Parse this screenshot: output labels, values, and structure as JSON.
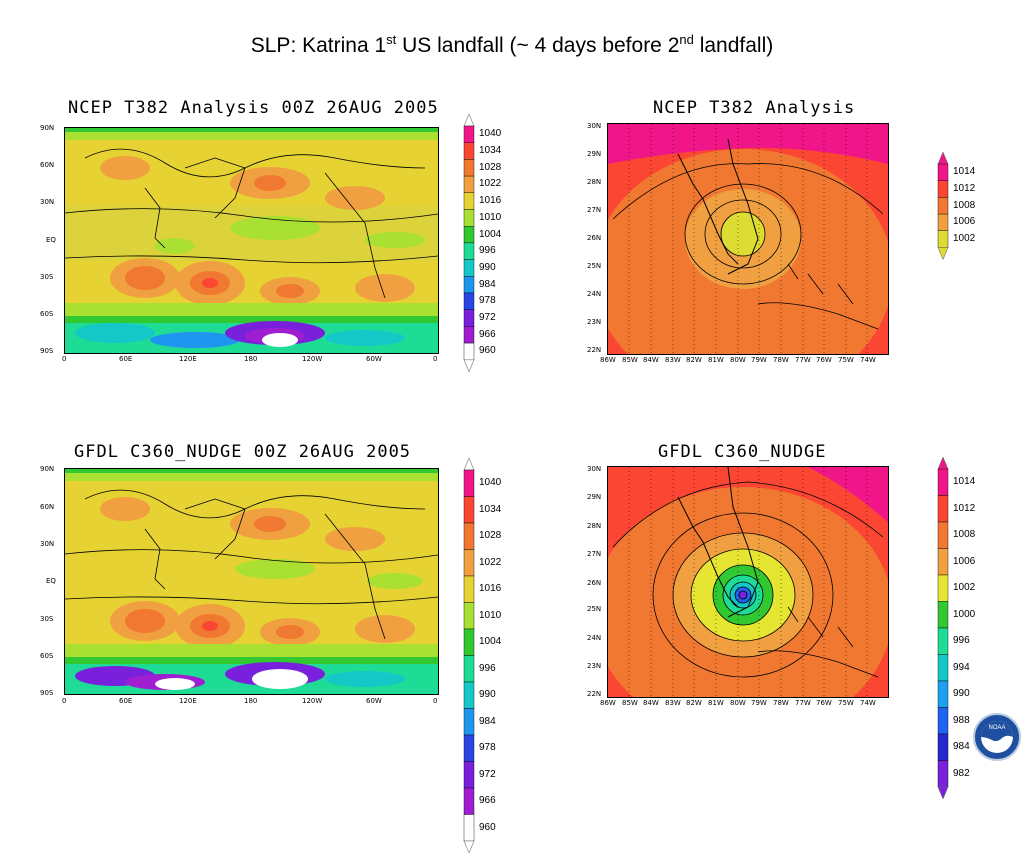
{
  "slide": {
    "title_pre": "SLP:  Katrina 1",
    "title_sup1": "st",
    "title_mid": " US landfall (~ 4 days before 2",
    "title_sup2": "nd",
    "title_post": " landfall)"
  },
  "chart_data": [
    {
      "type": "heatmap",
      "title": "NCEP T382 Analysis 00Z 26AUG 2005",
      "x_ticks": [
        "0",
        "60E",
        "120E",
        "180",
        "120W",
        "60W",
        "0"
      ],
      "y_ticks": [
        "90N",
        "60N",
        "30N",
        "EQ",
        "30S",
        "60S",
        "90S"
      ],
      "colorbar": {
        "levels": [
          "1040",
          "1034",
          "1028",
          "1022",
          "1016",
          "1010",
          "1004",
          "996",
          "990",
          "984",
          "978",
          "972",
          "966",
          "960"
        ],
        "colors": [
          "#f0168a",
          "#fa4632",
          "#f07830",
          "#f0a040",
          "#e6d232",
          "#aae032",
          "#32c832",
          "#1edc96",
          "#14c8c8",
          "#1e96f0",
          "#2846e6",
          "#7820dc",
          "#a01ed2",
          "#ffffff"
        ]
      }
    },
    {
      "type": "heatmap",
      "title": "NCEP T382 Analysis",
      "x_ticks": [
        "86W",
        "85W",
        "84W",
        "83W",
        "82W",
        "81W",
        "80W",
        "79W",
        "78W",
        "77W",
        "76W",
        "75W",
        "74W"
      ],
      "y_ticks": [
        "30N",
        "29N",
        "28N",
        "27N",
        "26N",
        "25N",
        "24N",
        "23N",
        "22N"
      ],
      "colorbar": {
        "levels": [
          "1014",
          "1012",
          "1008",
          "1006",
          "1002"
        ],
        "colors": [
          "#f0168a",
          "#fa4632",
          "#f07830",
          "#f0a040",
          "#dcdc32"
        ]
      }
    },
    {
      "type": "heatmap",
      "title": "GFDL C360_NUDGE 00Z 26AUG 2005",
      "x_ticks": [
        "0",
        "60E",
        "120E",
        "180",
        "120W",
        "60W",
        "0"
      ],
      "y_ticks": [
        "90N",
        "60N",
        "30N",
        "EQ",
        "30S",
        "60S",
        "90S"
      ],
      "colorbar": {
        "levels": [
          "1040",
          "1034",
          "1028",
          "1022",
          "1016",
          "1010",
          "1004",
          "996",
          "990",
          "984",
          "978",
          "972",
          "966",
          "960"
        ],
        "colors": [
          "#f0168a",
          "#fa4632",
          "#f07830",
          "#f0a040",
          "#e6d232",
          "#aae032",
          "#32c832",
          "#1edc96",
          "#14c8c8",
          "#1e96f0",
          "#2846e6",
          "#7820dc",
          "#a01ed2",
          "#ffffff"
        ]
      }
    },
    {
      "type": "heatmap",
      "title": "GFDL C360_NUDGE",
      "x_ticks": [
        "86W",
        "85W",
        "84W",
        "83W",
        "82W",
        "81W",
        "80W",
        "79W",
        "78W",
        "77W",
        "76W",
        "75W",
        "74W"
      ],
      "y_ticks": [
        "30N",
        "29N",
        "28N",
        "27N",
        "26N",
        "25N",
        "24N",
        "23N",
        "22N"
      ],
      "colorbar": {
        "levels": [
          "1014",
          "1012",
          "1008",
          "1006",
          "1002",
          "1000",
          "996",
          "994",
          "990",
          "988",
          "984",
          "982"
        ],
        "colors": [
          "#f0168a",
          "#fa4632",
          "#f07830",
          "#f0a040",
          "#e6e632",
          "#32c832",
          "#1edc96",
          "#14c8c8",
          "#1ea0f0",
          "#1e64f0",
          "#2828d2",
          "#7820dc"
        ]
      }
    }
  ],
  "logo": {
    "text": "NOAA"
  }
}
